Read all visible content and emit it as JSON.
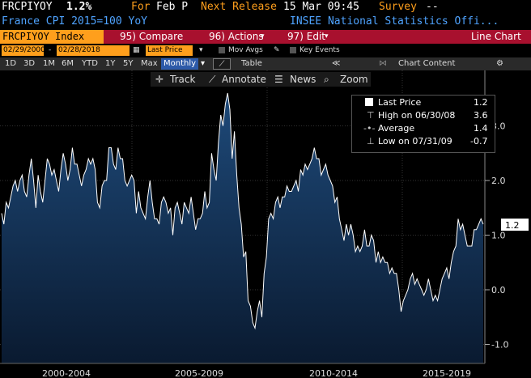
{
  "header": {
    "ticker": "FRCPIYOY",
    "value": "1.2%",
    "for_label": "For",
    "period": "Feb P",
    "next_release_label": "Next Release",
    "next_release_time": "15 Mar 09:45",
    "survey_label": "Survey",
    "survey_value": "--",
    "description": "France CPI 2015=100 YoY",
    "source": "INSEE National Statistics Offi..."
  },
  "toolbar": {
    "ticker_field": "FRCPIYOY Index",
    "compare": "95) Compare",
    "actions": "96) Actions",
    "edit": "97) Edit",
    "chart_type": "Line Chart"
  },
  "range": {
    "start": "02/29/2000",
    "end": "02/28/2018",
    "field": "Last Price",
    "mov_avgs": "Mov Avgs",
    "key_events": "Key Events"
  },
  "periods": [
    "1D",
    "3D",
    "1M",
    "6M",
    "YTD",
    "1Y",
    "5Y",
    "Max"
  ],
  "frequency": "Monthly",
  "table_label": "Table",
  "chart_content_label": "Chart Content",
  "chart_tools": {
    "track": "Track",
    "annotate": "Annotate",
    "news": "News",
    "zoom": "Zoom"
  },
  "legend": {
    "last_price_label": "Last Price",
    "last_price": "1.2",
    "high_label": "High on 06/30/08",
    "high": "3.6",
    "average_label": "Average",
    "average": "1.4",
    "low_label": "Low on 07/31/09",
    "low": "-0.7"
  },
  "colors": {
    "accent_orange": "#ff9f1c",
    "toolbar_red": "#a8102e",
    "line": "#ffffff",
    "area_top": "#1e4a7a",
    "area_bottom": "#0a1a30"
  },
  "chart_data": {
    "type": "area",
    "ylim": [
      -1.1,
      3.6
    ],
    "yticks": [
      "3.0",
      "2.0",
      "1.0",
      "0.0",
      "-1.0"
    ],
    "ytick_values": [
      3.0,
      2.0,
      1.0,
      0.0,
      -1.0
    ],
    "xlabels": [
      "2000-2004",
      "2005-2009",
      "2010-2014",
      "2015-2019"
    ],
    "last_value_label": "1.2",
    "values": [
      1.4,
      1.2,
      1.6,
      1.5,
      1.7,
      1.9,
      2.0,
      1.8,
      2.0,
      2.1,
      1.8,
      1.7,
      2.1,
      2.4,
      2.0,
      1.5,
      2.1,
      1.8,
      1.6,
      2.0,
      2.4,
      2.3,
      2.1,
      2.2,
      2.0,
      1.8,
      2.2,
      2.5,
      2.3,
      2.0,
      2.2,
      2.6,
      2.3,
      2.3,
      2.1,
      1.9,
      2.1,
      2.2,
      2.4,
      2.3,
      2.4,
      2.2,
      1.6,
      1.5,
      1.9,
      2.0,
      2.0,
      2.6,
      2.6,
      2.3,
      2.2,
      2.6,
      2.4,
      2.4,
      2.0,
      1.9,
      2.0,
      2.1,
      2.0,
      1.4,
      1.8,
      1.5,
      1.4,
      1.3,
      1.7,
      2.0,
      1.6,
      1.3,
      1.3,
      1.2,
      1.6,
      1.7,
      1.6,
      1.4,
      1.5,
      1.0,
      1.5,
      1.6,
      1.4,
      1.2,
      1.6,
      1.5,
      1.4,
      1.7,
      1.4,
      1.1,
      1.3,
      1.3,
      1.4,
      1.8,
      1.5,
      1.6,
      2.5,
      2.2,
      2.0,
      2.7,
      3.2,
      3.0,
      3.4,
      3.6,
      3.3,
      2.4,
      2.9,
      2.1,
      1.5,
      1.2,
      0.6,
      0.7,
      -0.2,
      -0.3,
      -0.6,
      -0.7,
      -0.4,
      -0.2,
      -0.5,
      0.3,
      0.6,
      1.3,
      1.4,
      1.3,
      1.6,
      1.7,
      1.5,
      1.7,
      1.7,
      1.9,
      1.8,
      1.8,
      1.9,
      2.0,
      1.8,
      2.2,
      2.1,
      2.3,
      2.2,
      2.3,
      2.4,
      2.6,
      2.4,
      2.4,
      2.1,
      2.2,
      2.3,
      2.1,
      2.0,
      1.9,
      1.6,
      1.7,
      1.3,
      1.1,
      0.9,
      1.2,
      1.0,
      1.2,
      1.0,
      0.7,
      0.8,
      0.7,
      0.8,
      1.1,
      0.8,
      0.8,
      1.0,
      0.9,
      0.5,
      0.7,
      0.5,
      0.6,
      0.5,
      0.5,
      0.3,
      0.4,
      0.3,
      0.3,
      0.0,
      -0.4,
      -0.2,
      -0.1,
      0.0,
      0.2,
      0.3,
      0.1,
      0.2,
      0.1,
      0.0,
      -0.1,
      0.0,
      0.2,
      0.0,
      -0.2,
      -0.1,
      -0.2,
      0.0,
      0.2,
      0.3,
      0.4,
      0.2,
      0.5,
      0.7,
      0.8,
      1.3,
      1.1,
      1.2,
      1.0,
      0.8,
      0.8,
      0.8,
      1.1,
      1.1,
      1.2,
      1.3,
      1.2
    ]
  }
}
